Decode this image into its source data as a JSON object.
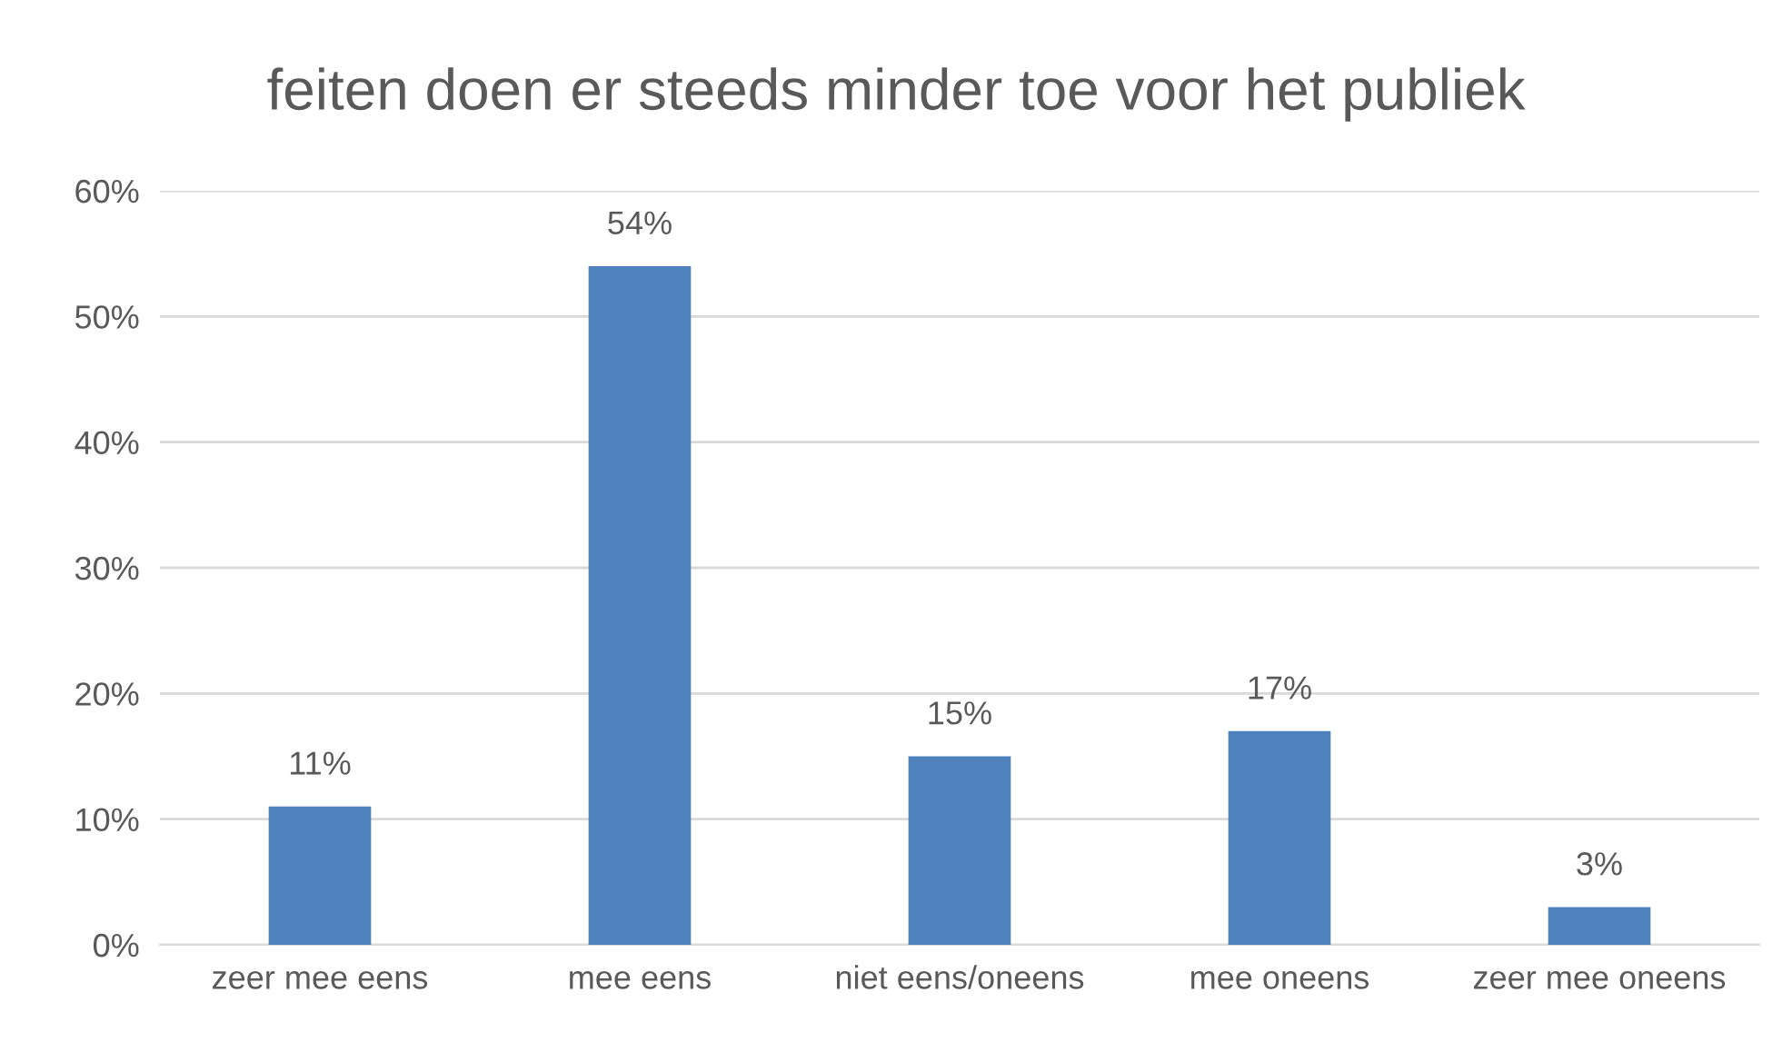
{
  "chart_data": {
    "type": "bar",
    "title": "feiten doen er steeds minder toe voor het publiek",
    "categories": [
      "zeer mee eens",
      "mee eens",
      "niet eens/oneens",
      "mee oneens",
      "zeer mee oneens"
    ],
    "values": [
      11,
      54,
      15,
      17,
      3
    ],
    "color": "#4f81bd",
    "value_labels": [
      "11%",
      "54%",
      "15%",
      "17%",
      "3%"
    ],
    "ylim": [
      0,
      60
    ],
    "yticks": [
      {
        "value": 0,
        "label": "0%"
      },
      {
        "value": 10,
        "label": "10%"
      },
      {
        "value": 20,
        "label": "20%"
      },
      {
        "value": 30,
        "label": "30%"
      },
      {
        "value": 40,
        "label": "40%"
      },
      {
        "value": 50,
        "label": "50%"
      },
      {
        "value": 60,
        "label": "60%"
      }
    ],
    "grid": "y"
  }
}
